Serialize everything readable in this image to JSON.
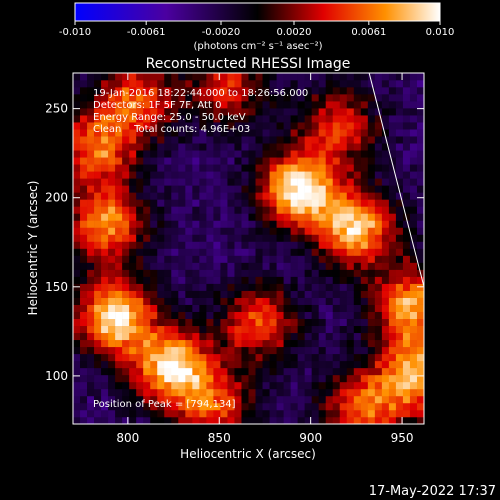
{
  "chart_data": {
    "type": "heatmap",
    "title": "Reconstructed RHESSI Image",
    "xlabel": "Heliocentric X (arcsec)",
    "ylabel": "Heliocentric Y (arcsec)",
    "xlim": [
      770,
      962
    ],
    "ylim": [
      73,
      270
    ],
    "x_ticks": [
      800,
      850,
      900,
      950
    ],
    "y_ticks": [
      100,
      150,
      200,
      250
    ],
    "colorbar": {
      "min": -0.01,
      "max": 0.01,
      "tick_values": [
        -0.01,
        -0.0061,
        -0.002,
        0.002,
        0.0061,
        0.01
      ],
      "tick_labels": [
        "-0.010",
        "-0.0061",
        "-0.0020",
        "0.0020",
        "0.0061",
        "0.010"
      ],
      "unit_label": "(photons cm⁻² s⁻¹ asec⁻²)"
    },
    "annotations": [
      "19-Jan-2016 18:22:44.000 to 18:26:56.000",
      "Detectors: 1F 5F 7F, Att 0",
      "Energy Range: 25.0 - 50.0 keV",
      "Clean    Total counts: 4.96E+03"
    ],
    "peak_label": "Position of Peak = [794,134]",
    "peak": [
      794,
      134
    ],
    "sources": [
      {
        "x": 893,
        "y": 205,
        "value": 0.01
      },
      {
        "x": 825,
        "y": 105,
        "value": 0.0095
      },
      {
        "x": 925,
        "y": 183,
        "value": 0.0085
      },
      {
        "x": 793,
        "y": 133,
        "value": 0.0095
      },
      {
        "x": 788,
        "y": 185,
        "value": 0.007
      },
      {
        "x": 783,
        "y": 228,
        "value": 0.006
      },
      {
        "x": 805,
        "y": 255,
        "value": 0.0055
      },
      {
        "x": 955,
        "y": 140,
        "value": 0.0075
      },
      {
        "x": 958,
        "y": 100,
        "value": 0.008
      },
      {
        "x": 872,
        "y": 130,
        "value": 0.005
      },
      {
        "x": 915,
        "y": 240,
        "value": 0.0045
      },
      {
        "x": 855,
        "y": 262,
        "value": 0.004
      },
      {
        "x": 848,
        "y": 82,
        "value": 0.0045
      },
      {
        "x": 928,
        "y": 82,
        "value": 0.0055
      }
    ],
    "limb_line": [
      [
        932,
        270
      ],
      [
        962,
        150
      ]
    ]
  },
  "footer_date": "17-May-2022 17:37"
}
